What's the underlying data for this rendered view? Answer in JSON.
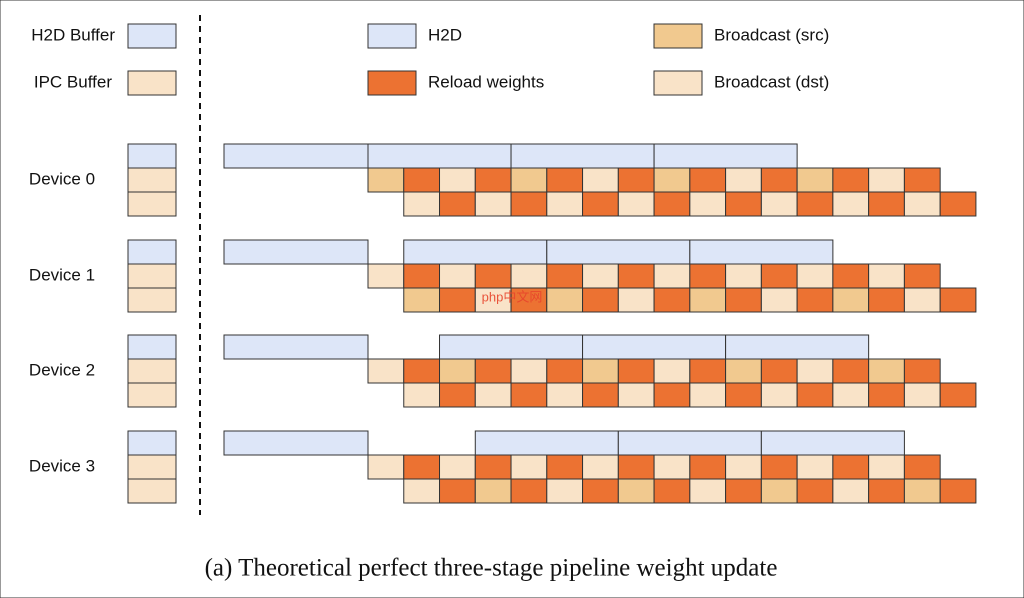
{
  "legend": {
    "h2d_buffer": "H2D Buffer",
    "ipc_buffer": "IPC Buffer",
    "h2d": "H2D",
    "reload_weights": "Reload weights",
    "broadcast_src": "Broadcast (src)",
    "broadcast_dst": "Broadcast (dst)"
  },
  "devices": [
    "Device 0",
    "Device 1",
    "Device 2",
    "Device 3"
  ],
  "watermark": "php中文网",
  "caption": "(a) Theoretical perfect three-stage pipeline weight update"
}
